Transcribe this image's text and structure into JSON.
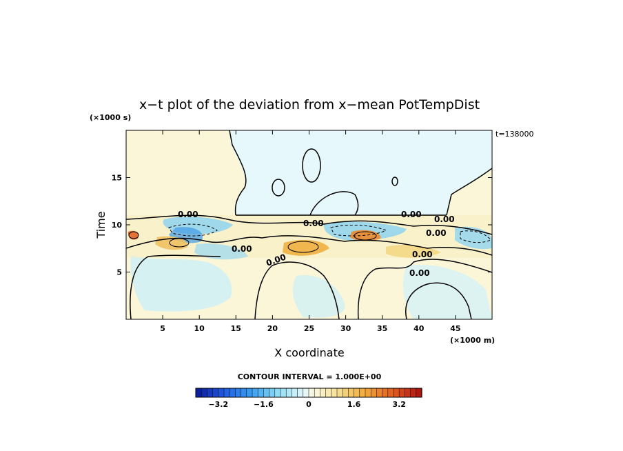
{
  "chart_data": {
    "type": "heatmap",
    "title": "x−t plot of the deviation from x−mean PotTempDist",
    "xlabel": "X coordinate",
    "ylabel": "Time",
    "x_unit": "(×1000 m)",
    "y_unit": "(×1000 s)",
    "time_stamp": "t=138000",
    "xlim": [
      0,
      50
    ],
    "ylim": [
      0,
      20
    ],
    "x_ticks": [
      "5",
      "10",
      "15",
      "20",
      "25",
      "30",
      "35",
      "40",
      "45"
    ],
    "y_ticks": [
      "5",
      "10",
      "15"
    ],
    "contour_interval_text": "CONTOUR INTERVAL = 1.000E+00",
    "contour_labels": [
      "0.00",
      "0.00",
      "0.00",
      "0.00",
      "0.00",
      "0.00",
      "0.00",
      "0.00",
      "0.00"
    ],
    "colorbar": {
      "min": -4.0,
      "max": 4.0,
      "step": 0.2,
      "tick_labels": [
        "−3.2",
        "−1.6",
        "0",
        "1.6",
        "3.2"
      ],
      "tick_values": [
        -3.2,
        -1.6,
        0,
        1.6,
        3.2
      ]
    },
    "colors": {
      "negative_strong": "#0a1aa8",
      "negative_mid": "#2f8fe8",
      "negative_weak": "#dff6fb",
      "positive_weak": "#fbf6d8",
      "positive_mid": "#f2b34a",
      "positive_strong": "#b41414",
      "contour_line": "#000000"
    }
  }
}
